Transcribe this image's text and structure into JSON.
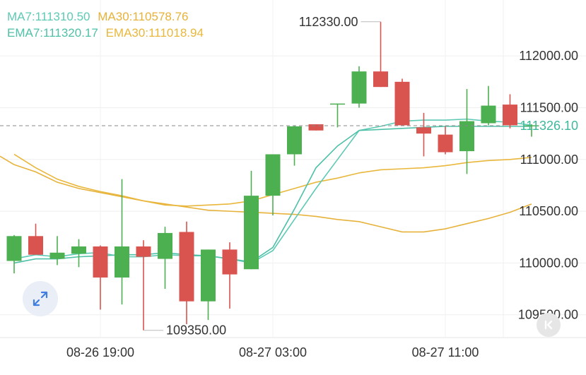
{
  "legend": {
    "ma7": "MA7:111310.50",
    "ma30": "MA30:110578.76",
    "ema7": "EMA7:111320.17",
    "ema30": "EMA30:111018.94"
  },
  "colors": {
    "up": "#4caf50",
    "down": "#d9534f",
    "ma7": "#5ec9b4",
    "ma30": "#e7b23a",
    "ema7": "#4fc0a8",
    "ema30": "#e9b73c",
    "price_tag": "#3fb89c"
  },
  "chart_data": {
    "type": "candlestick",
    "ylim": [
      109280,
      112540
    ],
    "y_ticks": [
      112000,
      111500,
      111000,
      110500,
      110000,
      109500
    ],
    "y_tick_labels": [
      "112000.00",
      "111500.00",
      "111000.00",
      "110500.00",
      "110000.00",
      "109500.00"
    ],
    "x_tick_labels": [
      "08-26 19:00",
      "08-27 03:00",
      "08-27 11:00"
    ],
    "x_tick_candle_index": [
      4,
      12,
      20
    ],
    "current_price_label": "111326.10",
    "current_price": 111326.1,
    "high_label": "112330.00",
    "high_value": 112330,
    "low_label": "109350.00",
    "low_value": 109350,
    "candles": [
      {
        "o": 110020,
        "h": 110270,
        "l": 109900,
        "c": 110260
      },
      {
        "o": 110260,
        "h": 110380,
        "l": 110090,
        "c": 110080
      },
      {
        "o": 110040,
        "h": 110260,
        "l": 109980,
        "c": 110100
      },
      {
        "o": 110090,
        "h": 110230,
        "l": 109960,
        "c": 110160
      },
      {
        "o": 110160,
        "h": 110170,
        "l": 109550,
        "c": 109860
      },
      {
        "o": 109860,
        "h": 110810,
        "l": 109600,
        "c": 110160
      },
      {
        "o": 110160,
        "h": 110220,
        "l": 109350,
        "c": 110060
      },
      {
        "o": 110040,
        "h": 110350,
        "l": 109750,
        "c": 110290
      },
      {
        "o": 110300,
        "h": 110400,
        "l": 109410,
        "c": 109630
      },
      {
        "o": 109630,
        "h": 110130,
        "l": 109450,
        "c": 110130
      },
      {
        "o": 110130,
        "h": 110200,
        "l": 109560,
        "c": 109890
      },
      {
        "o": 109940,
        "h": 110890,
        "l": 109940,
        "c": 110650
      },
      {
        "o": 110650,
        "h": 111050,
        "l": 110460,
        "c": 111050
      },
      {
        "o": 111050,
        "h": 111330,
        "l": 110940,
        "c": 111320
      },
      {
        "o": 111340,
        "h": 111340,
        "l": 111280,
        "c": 111280
      },
      {
        "o": 111540,
        "h": 111540,
        "l": 111310,
        "c": 111540
      },
      {
        "o": 111540,
        "h": 111900,
        "l": 111500,
        "c": 111850
      },
      {
        "o": 111850,
        "h": 112330,
        "l": 111700,
        "c": 111700
      },
      {
        "o": 111750,
        "h": 111780,
        "l": 111330,
        "c": 111330
      },
      {
        "o": 111310,
        "h": 111450,
        "l": 111030,
        "c": 111250
      },
      {
        "o": 111240,
        "h": 111320,
        "l": 111050,
        "c": 111070
      },
      {
        "o": 111080,
        "h": 111680,
        "l": 110860,
        "c": 111370
      },
      {
        "o": 111350,
        "h": 111710,
        "l": 111330,
        "c": 111520
      },
      {
        "o": 111530,
        "h": 111630,
        "l": 111300,
        "c": 111330
      },
      {
        "o": 111330,
        "h": 111340,
        "l": 111220,
        "c": 111330
      }
    ],
    "ma7": [
      110040,
      110080,
      110060,
      110090,
      110100,
      110060,
      110060,
      110080,
      110070,
      110070,
      110040,
      110000,
      110120,
      110420,
      110720,
      111000,
      111280,
      111320,
      111370,
      111380,
      111380,
      111390,
      111370,
      111360,
      111330
    ],
    "ema7": [
      110000,
      110040,
      110040,
      110060,
      110070,
      110080,
      110080,
      110100,
      110080,
      110070,
      110040,
      110010,
      110150,
      110520,
      110920,
      111130,
      111280,
      111290,
      111300,
      111310,
      111320,
      111320,
      111320,
      111320,
      111320
    ],
    "ma30": [
      110950,
      110880,
      110780,
      110720,
      110680,
      110640,
      110600,
      110570,
      110540,
      110510,
      110500,
      110490,
      110480,
      110470,
      110450,
      110420,
      110400,
      110350,
      110300,
      110300,
      110330,
      110380,
      110430,
      110490,
      110570
    ],
    "ema30": [
      111050,
      110920,
      110810,
      110740,
      110690,
      110650,
      110600,
      110560,
      110550,
      110560,
      110570,
      110600,
      110660,
      110720,
      110780,
      110820,
      110870,
      110900,
      110910,
      110920,
      110940,
      110970,
      110990,
      111000,
      111020
    ]
  }
}
